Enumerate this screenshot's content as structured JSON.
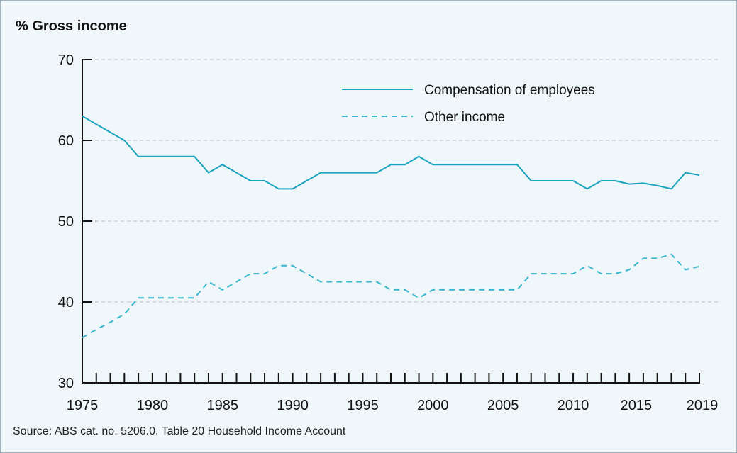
{
  "chart_data": {
    "type": "line",
    "ylabel": "% Gross income",
    "xlabel": "",
    "title": "",
    "source": "Source: ABS cat. no. 5206.0, Table 20 Household Income Account",
    "xlim": [
      1975,
      2019
    ],
    "ylim": [
      30,
      70
    ],
    "yticks": [
      30,
      40,
      50,
      60,
      70
    ],
    "xtick_labels": [
      1975,
      1980,
      1985,
      1990,
      1995,
      2000,
      2005,
      2010,
      2015,
      2019
    ],
    "grid": "horizontal dashed",
    "legend_position": "top-right",
    "x": [
      1975,
      1976,
      1977,
      1978,
      1979,
      1980,
      1981,
      1982,
      1983,
      1984,
      1985,
      1986,
      1987,
      1988,
      1989,
      1990,
      1991,
      1992,
      1993,
      1994,
      1995,
      1996,
      1997,
      1998,
      1999,
      2000,
      2001,
      2002,
      2003,
      2004,
      2005,
      2006,
      2007,
      2008,
      2009,
      2010,
      2011,
      2012,
      2013,
      2014,
      2015,
      2016,
      2017,
      2018,
      2019
    ],
    "series": [
      {
        "name": "Compensation of employees",
        "style": "solid",
        "color": "#1aa3c1",
        "values": [
          63,
          62,
          61,
          60,
          58,
          58,
          58,
          58,
          58,
          56,
          57,
          56,
          55,
          55,
          54,
          54,
          55,
          56,
          56,
          56,
          56,
          56,
          57,
          57,
          58,
          57,
          57,
          57,
          57,
          57,
          57,
          57,
          55,
          55,
          55,
          55,
          54,
          55,
          55,
          54.6,
          54.7,
          54.4,
          54,
          56,
          55.7
        ]
      },
      {
        "name": "Other income",
        "style": "dashed",
        "color": "#3ab6cf",
        "values": [
          35.6,
          36.6,
          37.5,
          38.5,
          40.5,
          40.5,
          40.5,
          40.5,
          40.5,
          42.5,
          41.5,
          42.5,
          43.5,
          43.5,
          44.5,
          44.5,
          43.5,
          42.5,
          42.5,
          42.5,
          42.5,
          42.5,
          41.5,
          41.5,
          40.5,
          41.5,
          41.5,
          41.5,
          41.5,
          41.5,
          41.5,
          41.5,
          43.5,
          43.5,
          43.5,
          43.5,
          44.5,
          43.5,
          43.5,
          44,
          45.4,
          45.4,
          45.9,
          44,
          44.4
        ]
      }
    ]
  }
}
